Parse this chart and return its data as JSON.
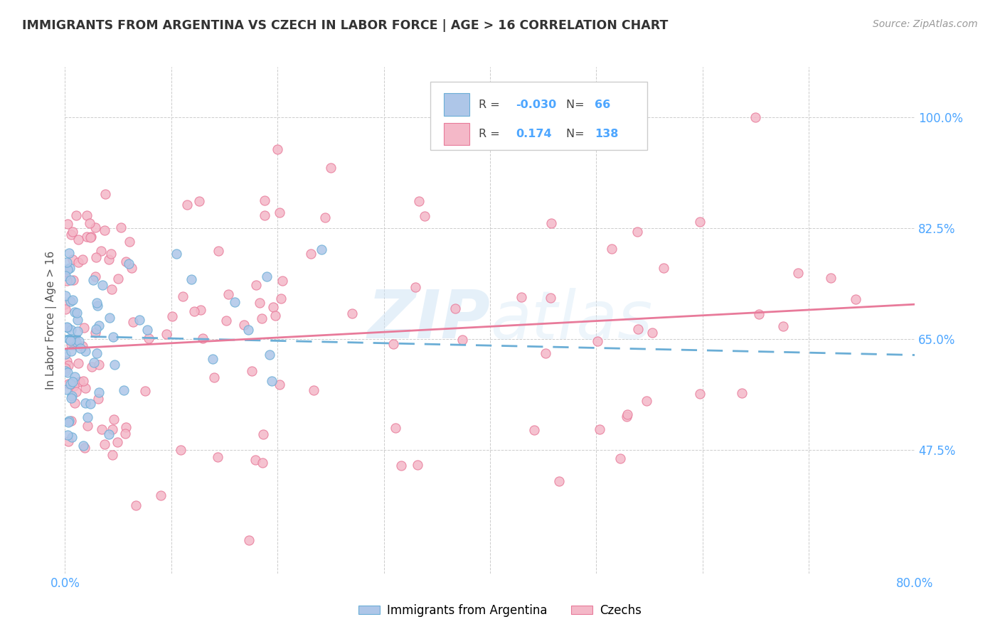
{
  "title": "IMMIGRANTS FROM ARGENTINA VS CZECH IN LABOR FORCE | AGE > 16 CORRELATION CHART",
  "source": "Source: ZipAtlas.com",
  "ylabel": "In Labor Force | Age > 16",
  "xlim": [
    0.0,
    0.8
  ],
  "ylim": [
    0.28,
    1.08
  ],
  "xticks": [
    0.0,
    0.1,
    0.2,
    0.3,
    0.4,
    0.5,
    0.6,
    0.7,
    0.8
  ],
  "xticklabels": [
    "0.0%",
    "",
    "",
    "",
    "",
    "",
    "",
    "",
    "80.0%"
  ],
  "ytick_positions": [
    0.475,
    0.65,
    0.825,
    1.0
  ],
  "ytick_labels": [
    "47.5%",
    "65.0%",
    "82.5%",
    "100.0%"
  ],
  "legend_label1": "Immigrants from Argentina",
  "legend_label2": "Czechs",
  "R1": "-0.030",
  "N1": "66",
  "R2": "0.174",
  "N2": "138",
  "color_argentina": "#aec6e8",
  "color_czech": "#f4b8c8",
  "color_argentina_edge": "#6baed6",
  "color_czech_edge": "#e87a9a",
  "color_argentina_line": "#6baed6",
  "color_czech_line": "#e87a9a",
  "watermark": "ZIPAtlas",
  "arg_trend_x0": 0.0,
  "arg_trend_y0": 0.655,
  "arg_trend_x1": 0.8,
  "arg_trend_y1": 0.625,
  "cz_trend_x0": 0.0,
  "cz_trend_y0": 0.635,
  "cz_trend_x1": 0.8,
  "cz_trend_y1": 0.705
}
